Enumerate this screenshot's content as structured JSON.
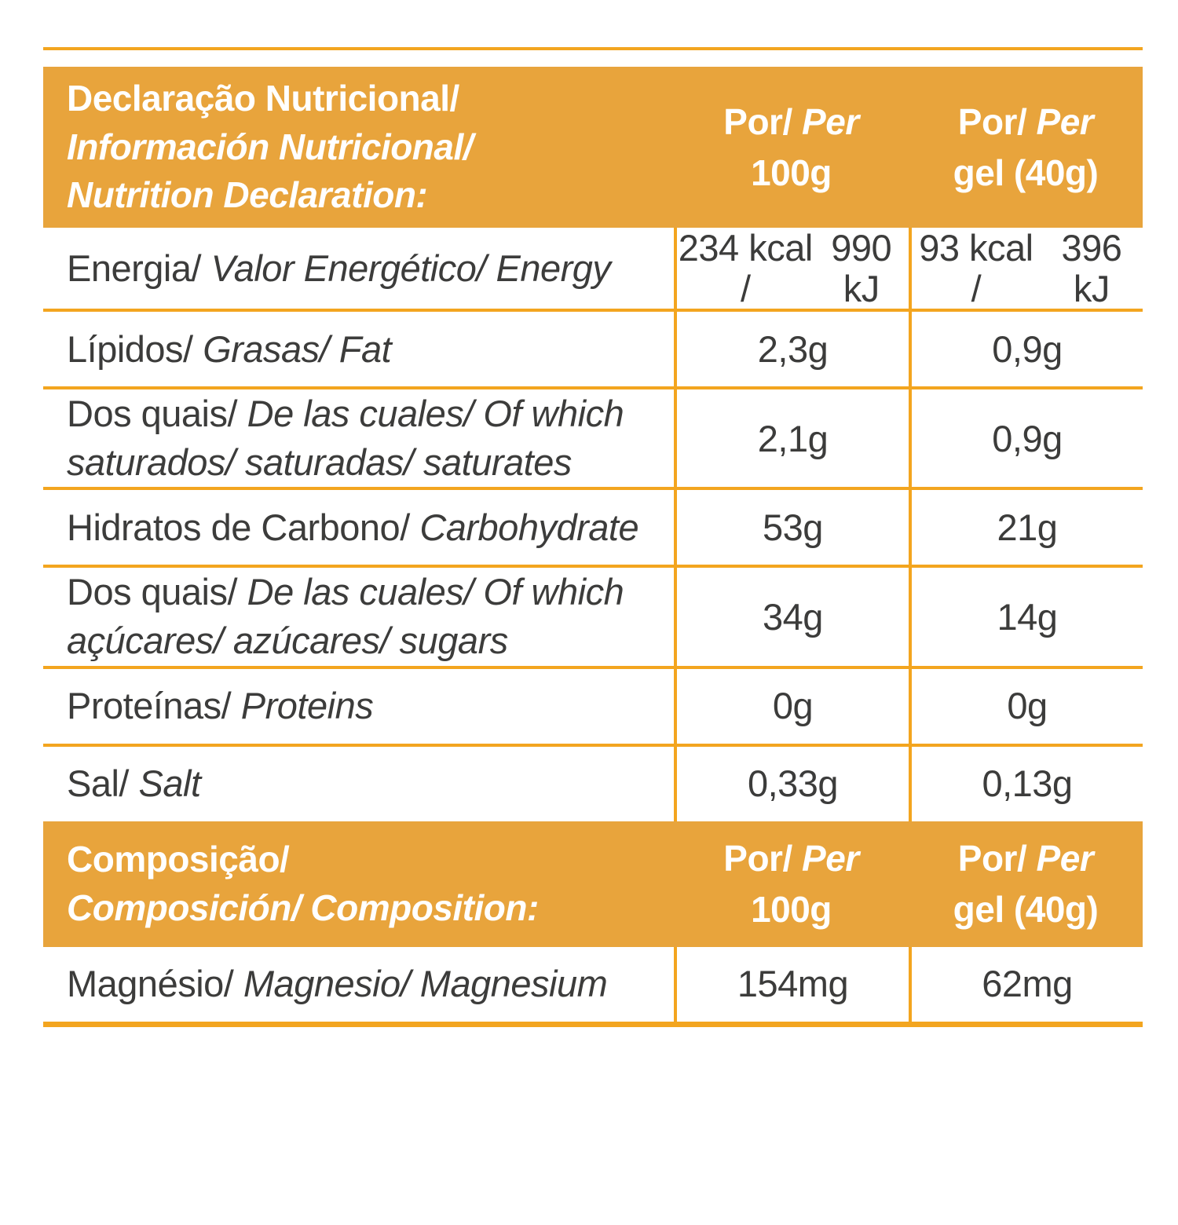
{
  "colors": {
    "gold_fill": "#e8a43c",
    "grid_line": "#f3a51f",
    "text": "#3c3c3b",
    "header_text": "#ffffff"
  },
  "nutrition": {
    "header": {
      "title_lines": [
        [
          {
            "t": "Declaração Nutricional/",
            "i": 0
          }
        ],
        [
          {
            "t": "Información Nutricional/",
            "i": 1
          }
        ],
        [
          {
            "t": "Nutrition Declaration:",
            "i": 1
          }
        ]
      ],
      "per100_lines": [
        [
          {
            "t": "Por/ ",
            "i": 0
          },
          {
            "t": "Per",
            "i": 1
          }
        ],
        [
          {
            "t": "100g",
            "i": 0
          }
        ]
      ],
      "pergel_lines": [
        [
          {
            "t": "Por/ ",
            "i": 0
          },
          {
            "t": "Per",
            "i": 1
          }
        ],
        [
          {
            "t": "gel (40g)",
            "i": 0
          }
        ]
      ]
    },
    "rows": [
      {
        "label_lines": [
          [
            {
              "t": "Energia/ ",
              "i": 0
            },
            {
              "t": "Valor Energético/ Energy",
              "i": 1
            }
          ]
        ],
        "per100_lines": [
          [
            {
              "t": "234 kcal /",
              "i": 0
            }
          ],
          [
            {
              "t": "990 kJ",
              "i": 0
            }
          ]
        ],
        "pergel_lines": [
          [
            {
              "t": "93 kcal /",
              "i": 0
            }
          ],
          [
            {
              "t": "396 kJ",
              "i": 0
            }
          ]
        ]
      },
      {
        "label_lines": [
          [
            {
              "t": "Lípidos/ ",
              "i": 0
            },
            {
              "t": "Grasas/ Fat",
              "i": 1
            }
          ]
        ],
        "per100_lines": [
          [
            {
              "t": "2,3g",
              "i": 0
            }
          ]
        ],
        "pergel_lines": [
          [
            {
              "t": "0,9g",
              "i": 0
            }
          ]
        ]
      },
      {
        "label_lines": [
          [
            {
              "t": "Dos quais/ ",
              "i": 0
            },
            {
              "t": "De las cuales/ Of which",
              "i": 1
            }
          ],
          [
            {
              "t": "saturados/ saturadas/ saturates",
              "i": 1
            }
          ]
        ],
        "per100_lines": [
          [
            {
              "t": "2,1g",
              "i": 0
            }
          ]
        ],
        "pergel_lines": [
          [
            {
              "t": "0,9g",
              "i": 0
            }
          ]
        ]
      },
      {
        "label_lines": [
          [
            {
              "t": "Hidratos de Carbono/ ",
              "i": 0
            },
            {
              "t": "Carbohydrate",
              "i": 1
            }
          ]
        ],
        "per100_lines": [
          [
            {
              "t": "53g",
              "i": 0
            }
          ]
        ],
        "pergel_lines": [
          [
            {
              "t": "21g",
              "i": 0
            }
          ]
        ]
      },
      {
        "label_lines": [
          [
            {
              "t": "Dos quais/ ",
              "i": 0
            },
            {
              "t": "De las cuales/ Of which",
              "i": 1
            }
          ],
          [
            {
              "t": "açúcares/ azúcares/ sugars",
              "i": 1
            }
          ]
        ],
        "per100_lines": [
          [
            {
              "t": "34g",
              "i": 0
            }
          ]
        ],
        "pergel_lines": [
          [
            {
              "t": "14g",
              "i": 0
            }
          ]
        ]
      },
      {
        "label_lines": [
          [
            {
              "t": "Proteínas/ ",
              "i": 0
            },
            {
              "t": "Proteins",
              "i": 1
            }
          ]
        ],
        "per100_lines": [
          [
            {
              "t": "0g",
              "i": 0
            }
          ]
        ],
        "pergel_lines": [
          [
            {
              "t": "0g",
              "i": 0
            }
          ]
        ]
      },
      {
        "label_lines": [
          [
            {
              "t": "Sal/ ",
              "i": 0
            },
            {
              "t": "Salt",
              "i": 1
            }
          ]
        ],
        "per100_lines": [
          [
            {
              "t": "0,33g",
              "i": 0
            }
          ]
        ],
        "pergel_lines": [
          [
            {
              "t": "0,13g",
              "i": 0
            }
          ]
        ]
      }
    ],
    "composition_header": {
      "title_lines": [
        [
          {
            "t": "Composição/",
            "i": 0
          }
        ],
        [
          {
            "t": "Composición/ Composition:",
            "i": 1
          }
        ]
      ],
      "per100_lines": [
        [
          {
            "t": "Por/ ",
            "i": 0
          },
          {
            "t": "Per",
            "i": 1
          }
        ],
        [
          {
            "t": "100g",
            "i": 0
          }
        ]
      ],
      "pergel_lines": [
        [
          {
            "t": "Por/ ",
            "i": 0
          },
          {
            "t": "Per",
            "i": 1
          }
        ],
        [
          {
            "t": "gel (40g)",
            "i": 0
          }
        ]
      ]
    },
    "composition_rows": [
      {
        "label_lines": [
          [
            {
              "t": "Magnésio/ ",
              "i": 0
            },
            {
              "t": "Magnesio/ Magnesium",
              "i": 1
            }
          ]
        ],
        "per100_lines": [
          [
            {
              "t": "154mg",
              "i": 0
            }
          ]
        ],
        "pergel_lines": [
          [
            {
              "t": "62mg",
              "i": 0
            }
          ]
        ]
      }
    ]
  }
}
